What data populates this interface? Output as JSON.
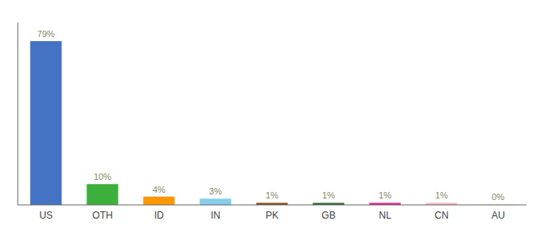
{
  "chart_data": {
    "type": "bar",
    "categories": [
      "US",
      "OTH",
      "ID",
      "IN",
      "PK",
      "GB",
      "NL",
      "CN",
      "AU"
    ],
    "values": [
      79,
      10,
      4,
      3,
      1,
      1,
      1,
      1,
      0.3
    ],
    "value_labels": [
      "79%",
      "10%",
      "4%",
      "3%",
      "1%",
      "1%",
      "1%",
      "1%",
      "0%"
    ],
    "colors": [
      "#4472c4",
      "#3daf3d",
      "#ff9800",
      "#87ceeb",
      "#8b4513",
      "#2e6b2e",
      "#e91e8c",
      "#ffb6c1",
      "#dddddd"
    ],
    "ylim": [
      0,
      88
    ],
    "data_labels": true,
    "tick_labels": "x",
    "grid": false
  }
}
